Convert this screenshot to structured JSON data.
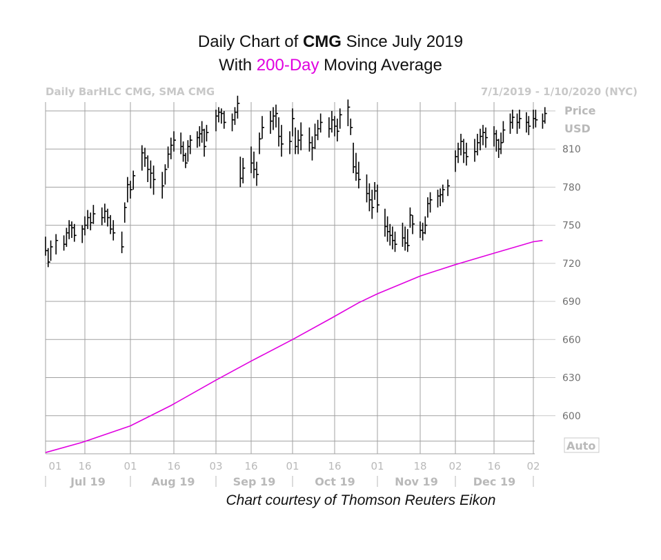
{
  "title": {
    "line1_prefix": "Daily Chart of ",
    "line1_ticker": "CMG",
    "line1_suffix": " Since July 2019",
    "line2_prefix": "With ",
    "line2_highlight": "200-Day",
    "line2_suffix": " Moving Average"
  },
  "colors": {
    "accent": "#e000e0",
    "bars": "#000000",
    "grid": "#a0a0a0",
    "muted_text": "#b9b9b9"
  },
  "chart_data": {
    "type": "line",
    "info_left": "Daily BarHLC CMG, SMA CMG",
    "info_right": "7/1/2019 - 1/10/2020 (NYC)",
    "ylabel": "Price",
    "yunit": "USD",
    "auto_label": "Auto",
    "y_ticks": [
      600,
      630,
      660,
      690,
      720,
      750,
      780,
      810
    ],
    "ylim": [
      570,
      847
    ],
    "x_day_ticks": [
      {
        "label": "01",
        "date": "2019-07-01"
      },
      {
        "label": "16",
        "date": "2019-07-16"
      },
      {
        "label": "01",
        "date": "2019-08-01"
      },
      {
        "label": "16",
        "date": "2019-08-16"
      },
      {
        "label": "03",
        "date": "2019-09-03"
      },
      {
        "label": "16",
        "date": "2019-09-16"
      },
      {
        "label": "01",
        "date": "2019-10-01"
      },
      {
        "label": "16",
        "date": "2019-10-16"
      },
      {
        "label": "01",
        "date": "2019-11-01"
      },
      {
        "label": "18",
        "date": "2019-11-18"
      },
      {
        "label": "02",
        "date": "2019-12-02"
      },
      {
        "label": "16",
        "date": "2019-12-16"
      },
      {
        "label": "02",
        "date": "2020-01-02"
      }
    ],
    "x_months": [
      "Jul 19",
      "Aug 19",
      "Sep 19",
      "Oct 19",
      "Nov 19",
      "Dec 19"
    ],
    "grid": true,
    "series": [
      {
        "name": "CMG",
        "kind": "hlc_bars",
        "hlc": [
          [
            741,
            726,
            730
          ],
          [
            732,
            717,
            721
          ],
          [
            738,
            722,
            733
          ],
          [
            743,
            727,
            738
          ],
          [
            742,
            730,
            735
          ],
          [
            748,
            733,
            744
          ],
          [
            754,
            739,
            750
          ],
          [
            753,
            740,
            748
          ],
          [
            751,
            737,
            742
          ],
          [
            750,
            736,
            747
          ],
          [
            757,
            742,
            750
          ],
          [
            762,
            747,
            756
          ],
          [
            760,
            746,
            752
          ],
          [
            766,
            751,
            759
          ],
          [
            764,
            750,
            756
          ],
          [
            767,
            752,
            761
          ],
          [
            763,
            749,
            756
          ],
          [
            758,
            743,
            747
          ],
          [
            754,
            738,
            744
          ],
          [
            745,
            728,
            733
          ],
          [
            768,
            752,
            764
          ],
          [
            788,
            768,
            782
          ],
          [
            785,
            771,
            778
          ],
          [
            793,
            778,
            789
          ],
          [
            813,
            793,
            807
          ],
          [
            811,
            796,
            803
          ],
          [
            805,
            784,
            794
          ],
          [
            801,
            779,
            791
          ],
          [
            797,
            774,
            786
          ],
          [
            792,
            771,
            781
          ],
          [
            798,
            782,
            794
          ],
          [
            812,
            795,
            806
          ],
          [
            819,
            802,
            813
          ],
          [
            824,
            808,
            817
          ],
          [
            823,
            806,
            812
          ],
          [
            816,
            800,
            805
          ],
          [
            807,
            795,
            799
          ],
          [
            817,
            800,
            812
          ],
          [
            821,
            806,
            817
          ],
          [
            824,
            811,
            819
          ],
          [
            828,
            812,
            822
          ],
          [
            832,
            815,
            825
          ],
          [
            826,
            804,
            812
          ],
          [
            829,
            816,
            823
          ],
          [
            841,
            824,
            836
          ],
          [
            843,
            831,
            839
          ],
          [
            842,
            830,
            838
          ],
          [
            840,
            826,
            831
          ],
          [
            838,
            824,
            833
          ],
          [
            843,
            829,
            839
          ],
          [
            852,
            834,
            846
          ],
          [
            804,
            780,
            787
          ],
          [
            803,
            783,
            795
          ],
          [
            812,
            791,
            799
          ],
          [
            808,
            787,
            794
          ],
          [
            800,
            781,
            790
          ],
          [
            823,
            806,
            818
          ],
          [
            836,
            818,
            827
          ],
          [
            840,
            822,
            832
          ],
          [
            843,
            825,
            836
          ],
          [
            845,
            827,
            838
          ],
          [
            835,
            812,
            820
          ],
          [
            829,
            804,
            814
          ],
          [
            824,
            806,
            816
          ],
          [
            842,
            820,
            834
          ],
          [
            827,
            806,
            812
          ],
          [
            825,
            806,
            817
          ],
          [
            831,
            809,
            821
          ],
          [
            827,
            808,
            815
          ],
          [
            820,
            801,
            811
          ],
          [
            830,
            810,
            821
          ],
          [
            833,
            817,
            826
          ],
          [
            838,
            823,
            831
          ],
          [
            835,
            819,
            826
          ],
          [
            840,
            823,
            833
          ],
          [
            836,
            820,
            828
          ],
          [
            834,
            816,
            824
          ],
          [
            842,
            826,
            837
          ],
          [
            849,
            828,
            843
          ],
          [
            834,
            821,
            827
          ],
          [
            815,
            791,
            796
          ],
          [
            807,
            785,
            791
          ],
          [
            800,
            779,
            786
          ],
          [
            790,
            768,
            775
          ],
          [
            783,
            761,
            770
          ],
          [
            778,
            755,
            764
          ],
          [
            784,
            770,
            777
          ],
          [
            782,
            760,
            766
          ],
          [
            763,
            741,
            749
          ],
          [
            757,
            737,
            745
          ],
          [
            751,
            734,
            742
          ],
          [
            749,
            731,
            738
          ],
          [
            745,
            729,
            735
          ],
          [
            752,
            733,
            740
          ],
          [
            749,
            730,
            736
          ],
          [
            747,
            729,
            734
          ],
          [
            764,
            748,
            758
          ],
          [
            758,
            743,
            751
          ],
          [
            753,
            740,
            746
          ],
          [
            752,
            738,
            744
          ],
          [
            757,
            743,
            750
          ],
          [
            772,
            756,
            767
          ],
          [
            776,
            760,
            770
          ],
          [
            778,
            764,
            773
          ],
          [
            779,
            765,
            774
          ],
          [
            782,
            768,
            778
          ],
          [
            786,
            773,
            781
          ],
          [
            809,
            792,
            804
          ],
          [
            815,
            799,
            810
          ],
          [
            822,
            805,
            816
          ],
          [
            818,
            799,
            807
          ],
          [
            815,
            797,
            804
          ],
          [
            818,
            800,
            808
          ],
          [
            822,
            805,
            815
          ],
          [
            826,
            809,
            820
          ],
          [
            829,
            813,
            823
          ],
          [
            827,
            811,
            819
          ],
          [
            828,
            812,
            822
          ],
          [
            825,
            808,
            817
          ],
          [
            818,
            803,
            810
          ],
          [
            823,
            806,
            815
          ],
          [
            832,
            815,
            825
          ],
          [
            838,
            822,
            831
          ],
          [
            841,
            826,
            835
          ],
          [
            838,
            822,
            831
          ],
          [
            841,
            826,
            834
          ],
          [
            839,
            823,
            831
          ],
          [
            836,
            821,
            828
          ],
          [
            841,
            826,
            834
          ],
          [
            841,
            827,
            833
          ],
          [
            838,
            826,
            832
          ],
          [
            843,
            830,
            838
          ]
        ]
      },
      {
        "name": "SMA CMG",
        "kind": "line",
        "color": "#e000e0",
        "points": [
          [
            "2019-07-01",
            571
          ],
          [
            "2019-07-15",
            579
          ],
          [
            "2019-08-01",
            592
          ],
          [
            "2019-08-15",
            608
          ],
          [
            "2019-09-03",
            628
          ],
          [
            "2019-09-16",
            643
          ],
          [
            "2019-10-01",
            660
          ],
          [
            "2019-10-15",
            677
          ],
          [
            "2019-10-25",
            689
          ],
          [
            "2019-11-01",
            696
          ],
          [
            "2019-11-12",
            705
          ],
          [
            "2019-11-18",
            710
          ],
          [
            "2019-12-02",
            719
          ],
          [
            "2019-12-16",
            728
          ],
          [
            "2020-01-02",
            737
          ],
          [
            "2020-01-06",
            738
          ]
        ]
      }
    ]
  },
  "footer": {
    "credit": "Chart courtesy of Thomson Reuters Eikon"
  }
}
